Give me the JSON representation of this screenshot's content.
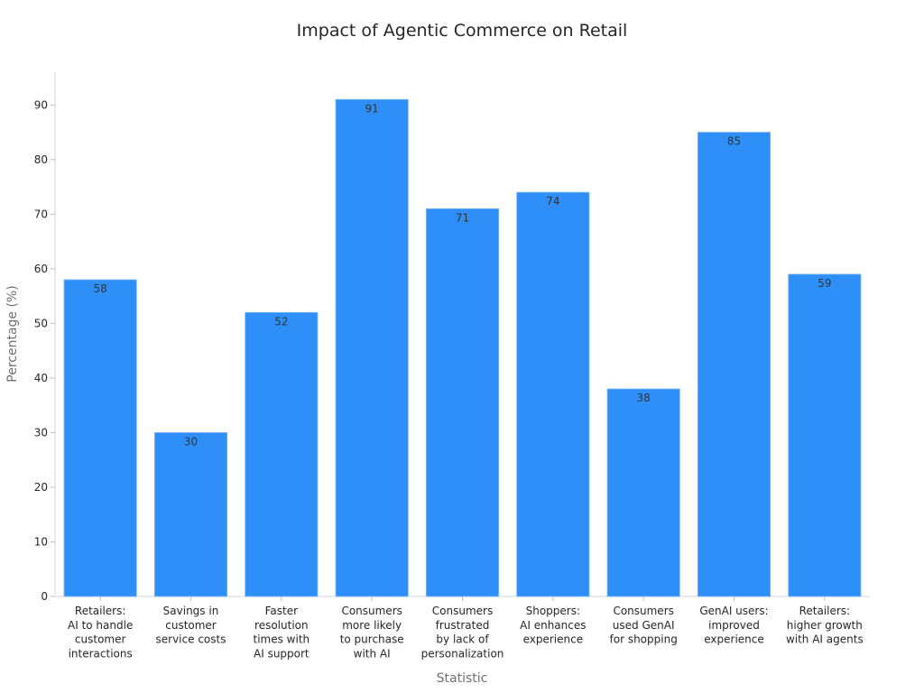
{
  "chart_data": {
    "type": "bar",
    "title": "Impact of Agentic Commerce on Retail",
    "xlabel": "Statistic",
    "ylabel": "Percentage (%)",
    "ylim": [
      0,
      96
    ],
    "yticks": [
      0,
      10,
      20,
      30,
      40,
      50,
      60,
      70,
      80,
      90
    ],
    "grid": false,
    "bar_color": "#2d8ff7",
    "categories": [
      [
        "Retailers:",
        "AI to handle",
        "customer",
        "interactions"
      ],
      [
        "Savings in",
        "customer",
        "service costs"
      ],
      [
        "Faster",
        "resolution",
        "times with",
        "AI support"
      ],
      [
        "Consumers",
        "more likely",
        "to purchase",
        "with AI"
      ],
      [
        "Consumers",
        "frustrated",
        "by lack of",
        "personalization"
      ],
      [
        "Shoppers:",
        "AI enhances",
        "experience"
      ],
      [
        "Consumers",
        "used GenAI",
        "for shopping"
      ],
      [
        "GenAI users:",
        "improved",
        "experience"
      ],
      [
        "Retailers:",
        "higher growth",
        "with AI agents"
      ]
    ],
    "values": [
      58,
      30,
      52,
      91,
      71,
      74,
      38,
      85,
      59
    ]
  }
}
